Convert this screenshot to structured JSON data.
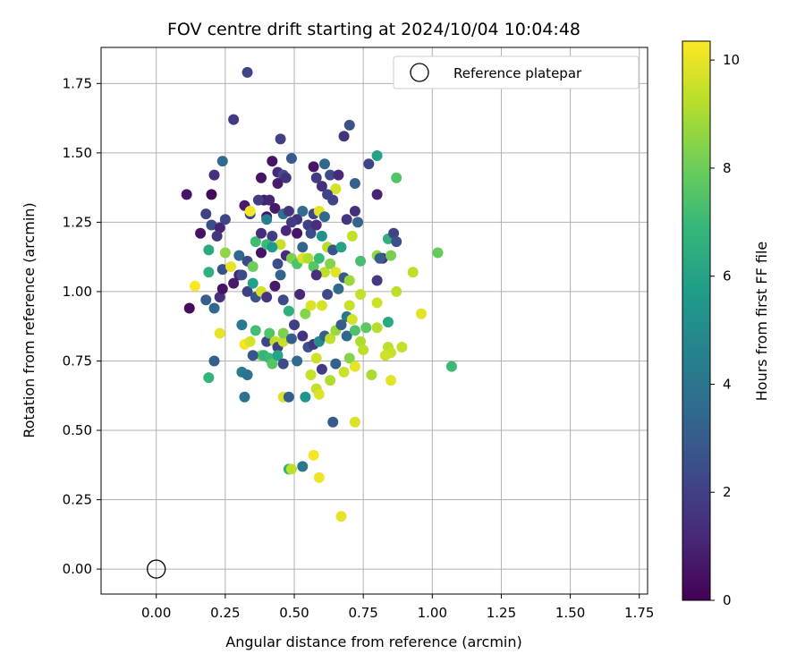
{
  "chart_data": {
    "type": "scatter",
    "title": "FOV centre drift starting at 2024/10/04 10:04:48",
    "xlabel": "Angular distance from reference (arcmin)",
    "ylabel": "Rotation from reference (arcmin)",
    "xlim": [
      -0.2,
      1.78
    ],
    "ylim": [
      -0.09,
      1.88
    ],
    "xticks": [
      "0.00",
      "0.25",
      "0.50",
      "0.75",
      "1.00",
      "1.25",
      "1.50",
      "1.75"
    ],
    "yticks": [
      "0.00",
      "0.25",
      "0.50",
      "0.75",
      "1.00",
      "1.25",
      "1.50",
      "1.75"
    ],
    "grid": true,
    "legend": {
      "position": "top-right",
      "entries": [
        "Reference platepar"
      ]
    },
    "reference_point": {
      "x": 0.0,
      "y": 0.0
    },
    "colorbar": {
      "label": "Hours from first FF file",
      "range": [
        0,
        10.35
      ],
      "ticks": [
        "0",
        "2",
        "4",
        "6",
        "8",
        "10"
      ],
      "colormap": [
        "#440154",
        "#482878",
        "#3e4989",
        "#31688e",
        "#26828e",
        "#1f9e89",
        "#35b779",
        "#6ece58",
        "#b5de2b",
        "#fde725"
      ]
    },
    "points": [
      [
        0.33,
        1.79,
        2.2
      ],
      [
        0.28,
        1.62,
        1.8
      ],
      [
        0.45,
        1.55,
        2.0
      ],
      [
        0.7,
        1.6,
        2.6
      ],
      [
        0.8,
        1.49,
        6.0
      ],
      [
        0.68,
        1.56,
        1.5
      ],
      [
        0.77,
        1.46,
        2.2
      ],
      [
        0.87,
        1.41,
        7.5
      ],
      [
        0.49,
        1.48,
        2.9
      ],
      [
        0.57,
        1.45,
        0.6
      ],
      [
        0.61,
        1.46,
        3.4
      ],
      [
        0.63,
        1.42,
        2.4
      ],
      [
        0.66,
        1.42,
        1.2
      ],
      [
        0.72,
        1.39,
        3.2
      ],
      [
        0.8,
        1.35,
        1.0
      ],
      [
        0.21,
        1.42,
        1.4
      ],
      [
        0.24,
        1.47,
        3.6
      ],
      [
        0.38,
        1.41,
        0.5
      ],
      [
        0.42,
        1.47,
        0.6
      ],
      [
        0.44,
        1.43,
        1.2
      ],
      [
        0.46,
        1.42,
        2.5
      ],
      [
        0.58,
        1.41,
        1.8
      ],
      [
        0.6,
        1.38,
        1.4
      ],
      [
        0.65,
        1.37,
        9.7
      ],
      [
        0.11,
        1.35,
        0.6
      ],
      [
        0.2,
        1.35,
        0.2
      ],
      [
        0.39,
        1.33,
        0.7
      ],
      [
        0.41,
        1.33,
        1.1
      ],
      [
        0.44,
        1.39,
        0.8
      ],
      [
        0.47,
        1.41,
        1.5
      ],
      [
        0.62,
        1.35,
        2.2
      ],
      [
        0.64,
        1.33,
        2.1
      ],
      [
        0.69,
        1.26,
        1.7
      ],
      [
        0.72,
        1.29,
        1.4
      ],
      [
        0.73,
        1.25,
        3.3
      ],
      [
        0.18,
        1.28,
        2.0
      ],
      [
        0.2,
        1.24,
        2.5
      ],
      [
        0.23,
        1.23,
        1.1
      ],
      [
        0.25,
        1.26,
        2.2
      ],
      [
        0.32,
        1.31,
        0.8
      ],
      [
        0.34,
        1.28,
        2.1
      ],
      [
        0.37,
        1.33,
        1.9
      ],
      [
        0.4,
        1.27,
        0.4
      ],
      [
        0.43,
        1.3,
        0.7
      ],
      [
        0.46,
        1.28,
        3.8
      ],
      [
        0.48,
        1.29,
        1.7
      ],
      [
        0.51,
        1.26,
        1.5
      ],
      [
        0.53,
        1.29,
        3.7
      ],
      [
        0.55,
        1.24,
        2.0
      ],
      [
        0.57,
        1.28,
        2.2
      ],
      [
        0.59,
        1.29,
        9.9
      ],
      [
        0.61,
        1.27,
        3.5
      ],
      [
        0.16,
        1.21,
        0.5
      ],
      [
        0.19,
        1.15,
        6.3
      ],
      [
        0.22,
        1.2,
        1.6
      ],
      [
        0.25,
        1.14,
        8.6
      ],
      [
        0.3,
        1.13,
        3.4
      ],
      [
        0.34,
        1.29,
        10.2
      ],
      [
        0.36,
        1.18,
        7.1
      ],
      [
        0.38,
        1.21,
        1.3
      ],
      [
        0.4,
        1.26,
        4.3
      ],
      [
        0.42,
        1.2,
        1.9
      ],
      [
        0.45,
        1.17,
        9.5
      ],
      [
        0.47,
        1.22,
        1.2
      ],
      [
        0.49,
        1.25,
        1.8
      ],
      [
        0.51,
        1.21,
        0.6
      ],
      [
        0.53,
        1.16,
        3.3
      ],
      [
        0.56,
        1.21,
        2.5
      ],
      [
        0.58,
        1.24,
        1.4
      ],
      [
        0.6,
        1.2,
        5.3
      ],
      [
        0.62,
        1.16,
        9.2
      ],
      [
        0.64,
        1.15,
        2.7
      ],
      [
        0.67,
        1.16,
        6.0
      ],
      [
        0.71,
        1.2,
        9.4
      ],
      [
        0.74,
        1.11,
        7.3
      ],
      [
        0.8,
        1.13,
        8.6
      ],
      [
        0.82,
        1.12,
        1.6
      ],
      [
        0.84,
        1.19,
        6.6
      ],
      [
        0.86,
        1.21,
        2.1
      ],
      [
        0.87,
        1.18,
        2.6
      ],
      [
        0.19,
        1.07,
        6.6
      ],
      [
        0.24,
        1.08,
        2.6
      ],
      [
        0.27,
        1.09,
        10.0
      ],
      [
        0.3,
        1.06,
        1.0
      ],
      [
        0.33,
        1.11,
        2.3
      ],
      [
        0.35,
        1.09,
        8.0
      ],
      [
        0.38,
        1.14,
        0.6
      ],
      [
        0.4,
        1.17,
        7.0
      ],
      [
        0.42,
        1.16,
        5.6
      ],
      [
        0.44,
        1.1,
        2.5
      ],
      [
        0.47,
        1.13,
        1.3
      ],
      [
        0.49,
        1.12,
        8.3
      ],
      [
        0.51,
        1.1,
        7.4
      ],
      [
        0.53,
        1.12,
        9.8
      ],
      [
        0.55,
        1.12,
        9.1
      ],
      [
        0.57,
        1.09,
        7.6
      ],
      [
        0.59,
        1.12,
        7.0
      ],
      [
        0.61,
        1.07,
        9.3
      ],
      [
        0.63,
        1.1,
        8.4
      ],
      [
        0.65,
        1.07,
        9.9
      ],
      [
        0.68,
        1.05,
        2.9
      ],
      [
        0.7,
        1.04,
        8.8
      ],
      [
        0.8,
        1.04,
        1.8
      ],
      [
        0.81,
        1.12,
        3.0
      ],
      [
        0.85,
        1.13,
        8.2
      ],
      [
        0.93,
        1.07,
        9.3
      ],
      [
        1.02,
        1.14,
        7.9
      ],
      [
        0.14,
        1.02,
        10.3
      ],
      [
        0.18,
        0.97,
        3.1
      ],
      [
        0.21,
        0.94,
        3.6
      ],
      [
        0.23,
        0.98,
        1.5
      ],
      [
        0.24,
        1.01,
        0.5
      ],
      [
        0.28,
        1.03,
        0.8
      ],
      [
        0.31,
        1.06,
        2.4
      ],
      [
        0.33,
        1.0,
        2.0
      ],
      [
        0.35,
        1.03,
        5.9
      ],
      [
        0.36,
        0.98,
        2.7
      ],
      [
        0.38,
        1.0,
        9.7
      ],
      [
        0.4,
        0.98,
        1.6
      ],
      [
        0.43,
        1.02,
        0.7
      ],
      [
        0.45,
        1.06,
        3.3
      ],
      [
        0.46,
        0.97,
        2.3
      ],
      [
        0.48,
        0.93,
        6.6
      ],
      [
        0.52,
        0.99,
        1.2
      ],
      [
        0.54,
        0.92,
        8.4
      ],
      [
        0.56,
        0.95,
        9.8
      ],
      [
        0.58,
        1.06,
        1.4
      ],
      [
        0.6,
        0.95,
        9.7
      ],
      [
        0.62,
        0.99,
        2.3
      ],
      [
        0.66,
        1.01,
        3.6
      ],
      [
        0.69,
        0.91,
        4.1
      ],
      [
        0.7,
        0.95,
        9.5
      ],
      [
        0.74,
        0.99,
        9.4
      ],
      [
        0.8,
        0.96,
        9.6
      ],
      [
        0.84,
        0.89,
        6.2
      ],
      [
        0.87,
        1.0,
        9.3
      ],
      [
        0.96,
        0.92,
        9.9
      ],
      [
        0.12,
        0.94,
        0.3
      ],
      [
        0.23,
        0.85,
        10.0
      ],
      [
        0.31,
        0.88,
        4.1
      ],
      [
        0.32,
        0.81,
        10.2
      ],
      [
        0.34,
        0.82,
        9.7
      ],
      [
        0.36,
        0.86,
        7.2
      ],
      [
        0.38,
        0.77,
        8.2
      ],
      [
        0.4,
        0.82,
        2.2
      ],
      [
        0.41,
        0.85,
        7.5
      ],
      [
        0.43,
        0.82,
        9.4
      ],
      [
        0.44,
        0.8,
        2.0
      ],
      [
        0.46,
        0.82,
        9.5
      ],
      [
        0.46,
        0.85,
        8.3
      ],
      [
        0.5,
        0.88,
        1.9
      ],
      [
        0.53,
        0.84,
        1.6
      ],
      [
        0.55,
        0.8,
        2.7
      ],
      [
        0.57,
        0.81,
        1.6
      ],
      [
        0.59,
        0.82,
        5.0
      ],
      [
        0.61,
        0.84,
        3.1
      ],
      [
        0.63,
        0.83,
        9.4
      ],
      [
        0.65,
        0.86,
        8.8
      ],
      [
        0.67,
        0.88,
        3.0
      ],
      [
        0.69,
        0.84,
        3.5
      ],
      [
        0.71,
        0.9,
        9.7
      ],
      [
        0.72,
        0.86,
        7.4
      ],
      [
        0.74,
        0.82,
        9.1
      ],
      [
        0.76,
        0.87,
        7.7
      ],
      [
        0.8,
        0.87,
        9.2
      ],
      [
        0.84,
        0.8,
        9.3
      ],
      [
        0.85,
        0.78,
        9.5
      ],
      [
        0.89,
        0.8,
        9.4
      ],
      [
        0.19,
        0.69,
        6.8
      ],
      [
        0.21,
        0.75,
        3.1
      ],
      [
        0.31,
        0.71,
        4.3
      ],
      [
        0.33,
        0.7,
        3.9
      ],
      [
        0.35,
        0.77,
        2.8
      ],
      [
        0.39,
        0.77,
        6.8
      ],
      [
        0.41,
        0.76,
        7.0
      ],
      [
        0.42,
        0.74,
        7.6
      ],
      [
        0.44,
        0.77,
        6.0
      ],
      [
        0.46,
        0.74,
        2.4
      ],
      [
        0.49,
        0.83,
        3.0
      ],
      [
        0.51,
        0.75,
        3.6
      ],
      [
        0.56,
        0.7,
        9.5
      ],
      [
        0.58,
        0.76,
        9.6
      ],
      [
        0.6,
        0.72,
        1.8
      ],
      [
        0.63,
        0.68,
        9.1
      ],
      [
        0.65,
        0.74,
        3.2
      ],
      [
        0.68,
        0.71,
        9.6
      ],
      [
        0.7,
        0.76,
        8.4
      ],
      [
        0.72,
        0.73,
        10.0
      ],
      [
        0.75,
        0.79,
        9.3
      ],
      [
        0.78,
        0.7,
        9.0
      ],
      [
        0.83,
        0.77,
        9.6
      ],
      [
        0.85,
        0.68,
        9.9
      ],
      [
        1.07,
        0.73,
        7.0
      ],
      [
        0.32,
        0.62,
        4.0
      ],
      [
        0.46,
        0.62,
        9.8
      ],
      [
        0.48,
        0.62,
        3.0
      ],
      [
        0.54,
        0.62,
        5.4
      ],
      [
        0.58,
        0.65,
        9.4
      ],
      [
        0.59,
        0.63,
        9.8
      ],
      [
        0.64,
        0.53,
        3.0
      ],
      [
        0.72,
        0.53,
        9.8
      ],
      [
        0.48,
        0.36,
        6.8
      ],
      [
        0.49,
        0.36,
        9.3
      ],
      [
        0.53,
        0.37,
        4.1
      ],
      [
        0.57,
        0.41,
        10.2
      ],
      [
        0.59,
        0.33,
        10.1
      ],
      [
        0.67,
        0.19,
        10.0
      ]
    ]
  }
}
